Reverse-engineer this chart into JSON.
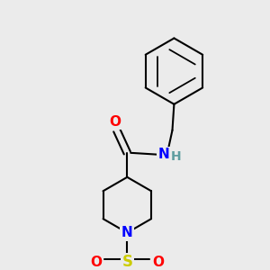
{
  "background_color": "#ebebeb",
  "bond_color": "#000000",
  "atom_colors": {
    "O": "#ff0000",
    "N": "#0000ff",
    "S": "#cccc00",
    "H": "#5f9ea0",
    "C": "#000000"
  },
  "font_size_atoms": 11,
  "line_width": 1.5,
  "fig_size": [
    3.0,
    3.0
  ],
  "dpi": 100
}
